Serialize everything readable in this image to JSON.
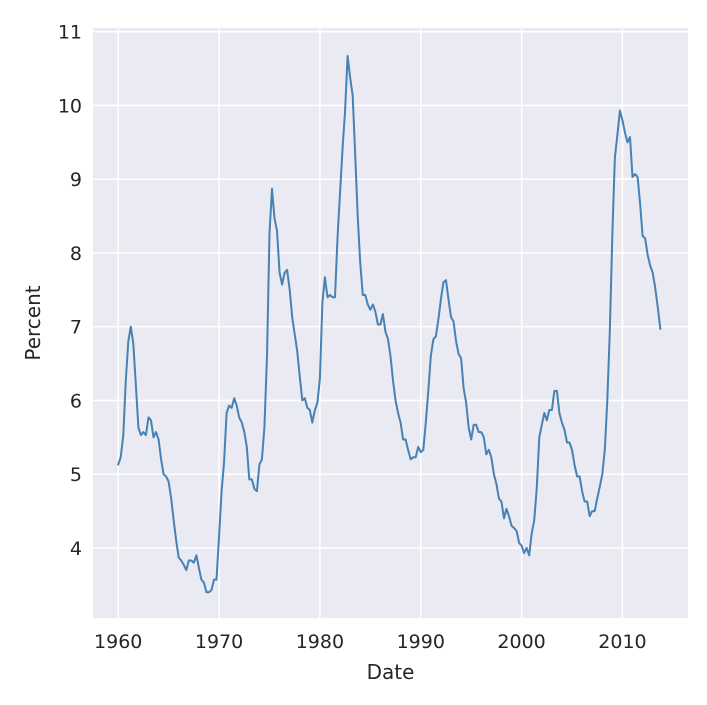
{
  "chart_data": {
    "type": "line",
    "xlabel": "Date",
    "ylabel": "Percent",
    "xlim": [
      1957.5,
      2016.5
    ],
    "ylim": [
      3.05,
      11.05
    ],
    "x_ticks": [
      1960,
      1970,
      1980,
      1990,
      2000,
      2010
    ],
    "x_tick_labels": [
      "1960",
      "1970",
      "1980",
      "1990",
      "2000",
      "2010"
    ],
    "y_ticks": [
      4,
      5,
      6,
      7,
      8,
      9,
      10,
      11
    ],
    "y_tick_labels": [
      "4",
      "5",
      "6",
      "7",
      "8",
      "9",
      "10",
      "11"
    ],
    "grid": true,
    "colors": {
      "plot_background": "#eaeaf2",
      "grid": "#ffffff",
      "line": "#4682b4"
    },
    "series": [
      {
        "x": [
          1960.0,
          1960.25,
          1960.5,
          1960.75,
          1961.0,
          1961.25,
          1961.5,
          1961.75,
          1962.0,
          1962.25,
          1962.5,
          1962.75,
          1963.0,
          1963.25,
          1963.5,
          1963.75,
          1964.0,
          1964.25,
          1964.5,
          1964.75,
          1965.0,
          1965.25,
          1965.5,
          1965.75,
          1966.0,
          1966.25,
          1966.5,
          1966.75,
          1967.0,
          1967.25,
          1967.5,
          1967.75,
          1968.0,
          1968.25,
          1968.5,
          1968.75,
          1969.0,
          1969.25,
          1969.5,
          1969.75,
          1970.0,
          1970.25,
          1970.5,
          1970.75,
          1971.0,
          1971.25,
          1971.5,
          1971.75,
          1972.0,
          1972.25,
          1972.5,
          1972.75,
          1973.0,
          1973.25,
          1973.5,
          1973.75,
          1974.0,
          1974.25,
          1974.5,
          1974.75,
          1975.0,
          1975.25,
          1975.5,
          1975.75,
          1976.0,
          1976.25,
          1976.5,
          1976.75,
          1977.0,
          1977.25,
          1977.5,
          1977.75,
          1978.0,
          1978.25,
          1978.5,
          1978.75,
          1979.0,
          1979.25,
          1979.5,
          1979.75,
          1980.0,
          1980.25,
          1980.5,
          1980.75,
          1981.0,
          1981.25,
          1981.5,
          1981.75,
          1982.0,
          1982.25,
          1982.5,
          1982.75,
          1983.0,
          1983.25,
          1983.5,
          1983.75,
          1984.0,
          1984.25,
          1984.5,
          1984.75,
          1985.0,
          1985.25,
          1985.5,
          1985.75,
          1986.0,
          1986.25,
          1986.5,
          1986.75,
          1987.0,
          1987.25,
          1987.5,
          1987.75,
          1988.0,
          1988.25,
          1988.5,
          1988.75,
          1989.0,
          1989.25,
          1989.5,
          1989.75,
          1990.0,
          1990.25,
          1990.5,
          1990.75,
          1991.0,
          1991.25,
          1991.5,
          1991.75,
          1992.0,
          1992.25,
          1992.5,
          1992.75,
          1993.0,
          1993.25,
          1993.5,
          1993.75,
          1994.0,
          1994.25,
          1994.5,
          1994.75,
          1995.0,
          1995.25,
          1995.5,
          1995.75,
          1996.0,
          1996.25,
          1996.5,
          1996.75,
          1997.0,
          1997.25,
          1997.5,
          1997.75,
          1998.0,
          1998.25,
          1998.5,
          1998.75,
          1999.0,
          1999.25,
          1999.5,
          1999.75,
          2000.0,
          2000.25,
          2000.5,
          2000.75,
          2001.0,
          2001.25,
          2001.5,
          2001.75,
          2002.0,
          2002.25,
          2002.5,
          2002.75,
          2003.0,
          2003.25,
          2003.5,
          2003.75,
          2004.0,
          2004.25,
          2004.5,
          2004.75,
          2005.0,
          2005.25,
          2005.5,
          2005.75,
          2006.0,
          2006.25,
          2006.5,
          2006.75,
          2007.0,
          2007.25,
          2007.5,
          2007.75,
          2008.0,
          2008.25,
          2008.5,
          2008.75,
          2009.0,
          2009.25,
          2009.5,
          2009.75,
          2010.0,
          2010.25,
          2010.5,
          2010.75,
          2011.0,
          2011.25,
          2011.5,
          2011.75,
          2012.0,
          2012.25,
          2012.5,
          2012.75,
          2013.0,
          2013.25,
          2013.5,
          2013.75
        ],
        "values": [
          5.13,
          5.23,
          5.53,
          6.27,
          6.8,
          7.0,
          6.77,
          6.2,
          5.63,
          5.53,
          5.57,
          5.53,
          5.77,
          5.73,
          5.5,
          5.57,
          5.47,
          5.2,
          5.0,
          4.97,
          4.9,
          4.67,
          4.37,
          4.1,
          3.87,
          3.83,
          3.77,
          3.7,
          3.83,
          3.83,
          3.8,
          3.9,
          3.73,
          3.57,
          3.53,
          3.4,
          3.4,
          3.43,
          3.57,
          3.57,
          4.17,
          4.77,
          5.17,
          5.83,
          5.93,
          5.9,
          6.03,
          5.93,
          5.77,
          5.7,
          5.57,
          5.37,
          4.93,
          4.93,
          4.8,
          4.77,
          5.13,
          5.2,
          5.63,
          6.6,
          8.27,
          8.87,
          8.47,
          8.3,
          7.73,
          7.57,
          7.73,
          7.77,
          7.5,
          7.13,
          6.9,
          6.67,
          6.33,
          6.0,
          6.03,
          5.9,
          5.87,
          5.7,
          5.87,
          5.97,
          6.3,
          7.33,
          7.67,
          7.4,
          7.43,
          7.4,
          7.4,
          8.23,
          8.83,
          9.43,
          9.93,
          10.67,
          10.37,
          10.13,
          9.33,
          8.5,
          7.87,
          7.43,
          7.43,
          7.3,
          7.23,
          7.3,
          7.2,
          7.03,
          7.03,
          7.17,
          6.93,
          6.83,
          6.6,
          6.27,
          6.0,
          5.83,
          5.7,
          5.47,
          5.47,
          5.33,
          5.2,
          5.23,
          5.23,
          5.37,
          5.3,
          5.33,
          5.7,
          6.13,
          6.6,
          6.83,
          6.87,
          7.1,
          7.37,
          7.6,
          7.63,
          7.37,
          7.13,
          7.07,
          6.8,
          6.63,
          6.57,
          6.17,
          5.97,
          5.63,
          5.47,
          5.67,
          5.67,
          5.57,
          5.57,
          5.5,
          5.27,
          5.33,
          5.23,
          5.0,
          4.87,
          4.67,
          4.63,
          4.4,
          4.53,
          4.43,
          4.3,
          4.27,
          4.23,
          4.07,
          4.03,
          3.93,
          4.0,
          3.9,
          4.2,
          4.37,
          4.8,
          5.5,
          5.67,
          5.83,
          5.73,
          5.87,
          5.87,
          6.13,
          6.13,
          5.83,
          5.7,
          5.6,
          5.43,
          5.43,
          5.33,
          5.13,
          4.97,
          4.97,
          4.77,
          4.63,
          4.63,
          4.43,
          4.5,
          4.5,
          4.67,
          4.83,
          5.0,
          5.33,
          6.0,
          6.93,
          8.27,
          9.3,
          9.6,
          9.93,
          9.8,
          9.63,
          9.5,
          9.57,
          9.03,
          9.07,
          9.03,
          8.67,
          8.23,
          8.2,
          7.97,
          7.83,
          7.73,
          7.53,
          7.27,
          6.97
        ]
      }
    ]
  }
}
